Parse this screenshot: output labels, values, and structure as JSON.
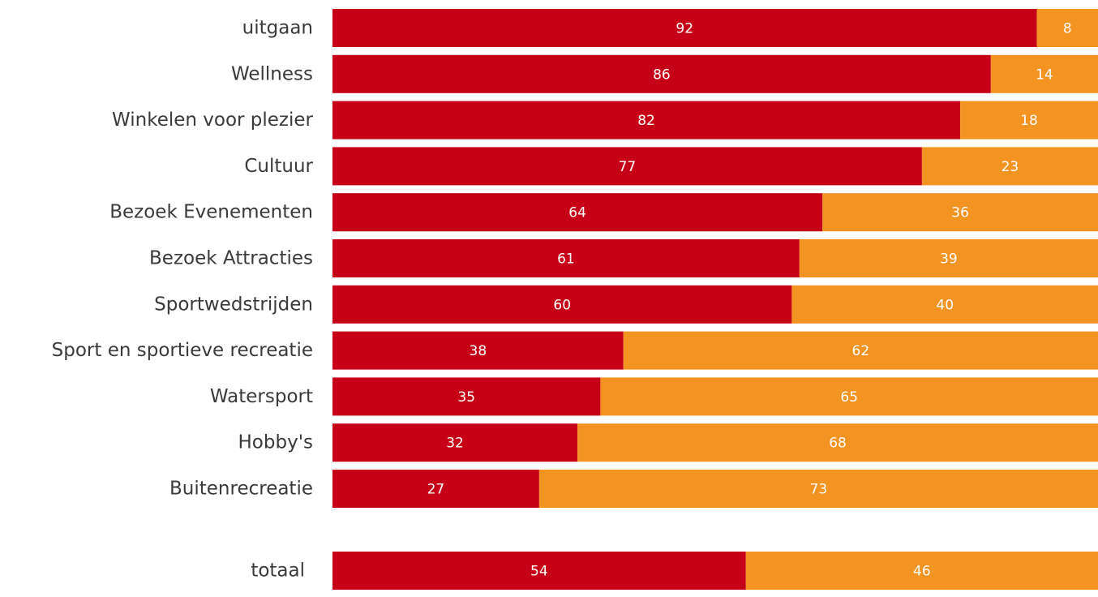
{
  "chart_data": {
    "type": "bar",
    "orientation": "horizontal",
    "stacked": true,
    "percent_stacked": true,
    "categories": [
      "uitgaan",
      "Wellness",
      "Winkelen voor plezier",
      "Cultuur",
      "Bezoek Evenementen",
      "Bezoek Attracties",
      "Sportwedstrijden",
      "Sport en sportieve recreatie",
      "Watersport",
      "Hobby's",
      "Buitenrecreatie",
      "totaal"
    ],
    "series": [
      {
        "values": [
          92,
          86,
          82,
          77,
          64,
          61,
          60,
          38,
          35,
          32,
          27,
          54
        ],
        "color": "#c50017"
      },
      {
        "values": [
          8,
          14,
          18,
          23,
          36,
          39,
          40,
          62,
          65,
          68,
          73,
          46
        ],
        "color": "#f39322"
      }
    ],
    "xlim": [
      0,
      100
    ],
    "grid": false,
    "legend": "none",
    "title": "",
    "xlabel": "",
    "ylabel": ""
  }
}
